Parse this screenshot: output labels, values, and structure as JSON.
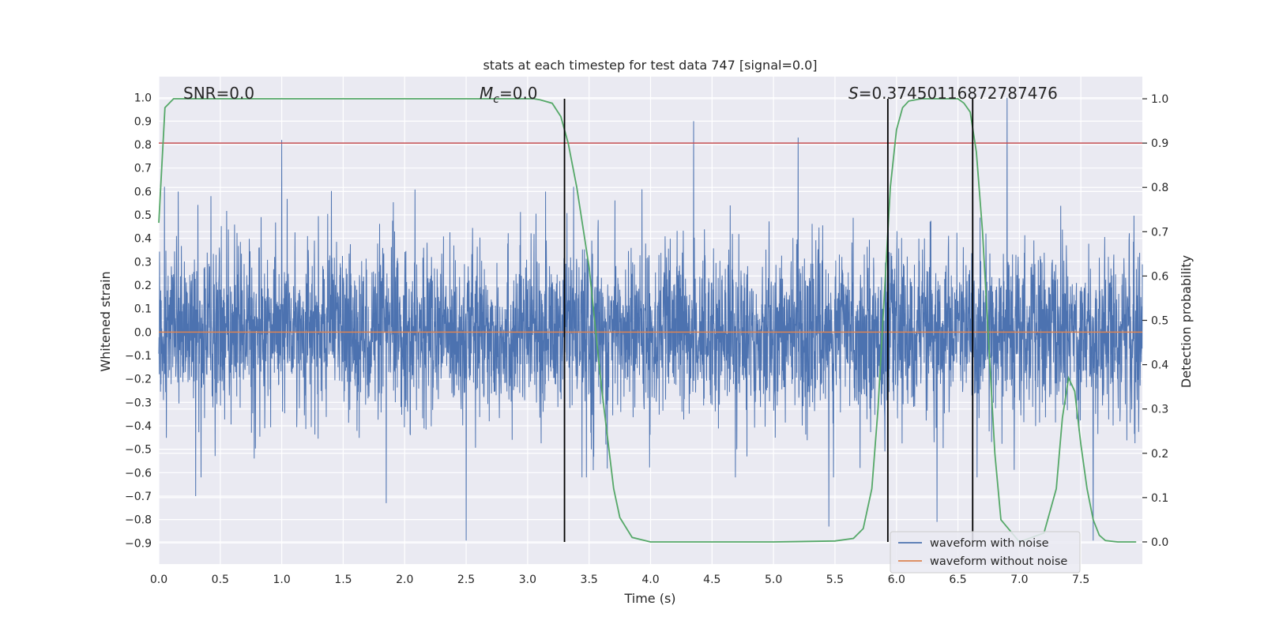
{
  "chart_data": {
    "type": "line",
    "title": "stats at each timestep for test data 747 [signal=0.0]",
    "xlabel": "Time (s)",
    "ylabel": "Whitened strain",
    "y2label": "Detection probability",
    "xlim": [
      0.0,
      8.0
    ],
    "ylim": [
      -0.99,
      1.09
    ],
    "y2lim": [
      -0.05,
      1.05
    ],
    "xticks": [
      0.0,
      0.5,
      1.0,
      1.5,
      2.0,
      2.5,
      3.0,
      3.5,
      4.0,
      4.5,
      5.0,
      5.5,
      6.0,
      6.5,
      7.0,
      7.5
    ],
    "xtick_labels": [
      "0.0",
      "0.5",
      "1.0",
      "1.5",
      "2.0",
      "2.5",
      "3.0",
      "3.5",
      "4.0",
      "4.5",
      "5.0",
      "5.5",
      "6.0",
      "6.5",
      "7.0",
      "7.5"
    ],
    "yticks": [
      -0.9,
      -0.8,
      -0.7,
      -0.6,
      -0.5,
      -0.4,
      -0.3,
      -0.2,
      -0.1,
      0.0,
      0.1,
      0.2,
      0.3,
      0.4,
      0.5,
      0.6,
      0.7,
      0.8,
      0.9,
      1.0
    ],
    "ytick_labels": [
      "−0.9",
      "−0.8",
      "−0.7",
      "−0.6",
      "−0.5",
      "−0.4",
      "−0.3",
      "−0.2",
      "−0.1",
      "0.0",
      "0.1",
      "0.2",
      "0.3",
      "0.4",
      "0.5",
      "0.6",
      "0.7",
      "0.8",
      "0.9",
      "1.0"
    ],
    "y2ticks": [
      0.0,
      0.1,
      0.2,
      0.3,
      0.4,
      0.5,
      0.6,
      0.7,
      0.8,
      0.9,
      1.0
    ],
    "y2tick_labels": [
      "0.0",
      "0.1",
      "0.2",
      "0.3",
      "0.4",
      "0.5",
      "0.6",
      "0.7",
      "0.8",
      "0.9",
      "1.0"
    ],
    "grid": true,
    "legend_position": "lower-right",
    "annotations": [
      {
        "text": "SNR=0.0",
        "x": 0.2,
        "y": 1.0
      },
      {
        "text": "M_c=0.0",
        "x": 2.6,
        "y": 1.0
      },
      {
        "text": "S=0.37450116872787476",
        "x": 5.6,
        "y": 1.0
      }
    ],
    "series": [
      {
        "name": "waveform with noise",
        "color": "#4c72b0",
        "kind": "noise",
        "typical_amplitude": 0.3,
        "peak_range": [
          -0.89,
          1.0
        ],
        "notable_peaks": [
          {
            "x": 1.0,
            "y": 0.82
          },
          {
            "x": 2.5,
            "y": -0.89
          },
          {
            "x": 4.35,
            "y": 0.9
          },
          {
            "x": 5.2,
            "y": 0.83
          },
          {
            "x": 5.45,
            "y": -0.83
          },
          {
            "x": 6.33,
            "y": -0.81
          },
          {
            "x": 6.9,
            "y": 1.0
          },
          {
            "x": 7.6,
            "y": -0.89
          },
          {
            "x": 3.3,
            "y": -0.68
          },
          {
            "x": 1.85,
            "y": -0.73
          },
          {
            "x": 0.3,
            "y": -0.7
          }
        ]
      },
      {
        "name": "waveform without noise",
        "color": "#dd8452",
        "x": [
          0.0,
          8.0
        ],
        "y": [
          0.0,
          0.0
        ]
      },
      {
        "name": "detection probability",
        "color": "#55a868",
        "axis": "right",
        "x": [
          0.0,
          0.05,
          0.12,
          0.5,
          1.0,
          2.0,
          2.8,
          3.05,
          3.1,
          3.2,
          3.27,
          3.33,
          3.4,
          3.5,
          3.6,
          3.7,
          3.75,
          3.85,
          4.0,
          5.0,
          5.5,
          5.65,
          5.73,
          5.8,
          5.85,
          5.9,
          5.95,
          6.0,
          6.05,
          6.1,
          6.2,
          6.3,
          6.5,
          6.55,
          6.6,
          6.65,
          6.7,
          6.75,
          6.8,
          6.85,
          7.0,
          7.2,
          7.3,
          7.35,
          7.4,
          7.45,
          7.5,
          7.55,
          7.6,
          7.65,
          7.7,
          7.8,
          7.95
        ],
        "y": [
          0.72,
          0.98,
          1.0,
          1.0,
          1.0,
          1.0,
          1.0,
          1.0,
          0.998,
          0.99,
          0.96,
          0.9,
          0.8,
          0.62,
          0.35,
          0.12,
          0.055,
          0.01,
          0.0,
          0.0,
          0.002,
          0.008,
          0.03,
          0.12,
          0.3,
          0.55,
          0.8,
          0.93,
          0.98,
          0.995,
          1.0,
          1.0,
          1.0,
          0.99,
          0.97,
          0.88,
          0.7,
          0.45,
          0.2,
          0.05,
          0.0,
          0.02,
          0.12,
          0.28,
          0.37,
          0.34,
          0.22,
          0.12,
          0.05,
          0.015,
          0.003,
          0.0,
          0.0
        ]
      },
      {
        "name": "threshold",
        "color": "#c44e52",
        "axis": "right",
        "y": 0.9
      }
    ],
    "vlines": [
      3.3,
      5.93,
      6.62
    ],
    "vline_color": "#000000",
    "vline_range_y2": [
      0.0,
      1.0
    ]
  }
}
